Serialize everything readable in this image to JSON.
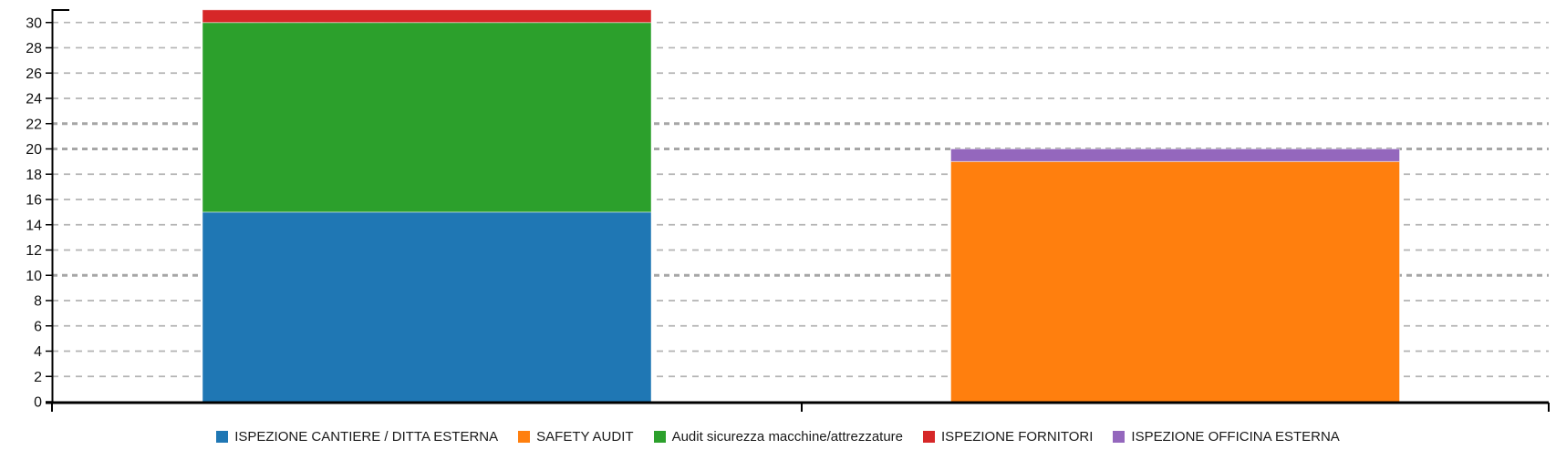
{
  "chart_data": {
    "type": "bar",
    "stacked": true,
    "orientation": "vertical",
    "title": "",
    "xlabel": "",
    "ylabel": "",
    "categories": [
      "",
      ""
    ],
    "series": [
      {
        "name": "ISPEZIONE CANTIERE / DITTA ESTERNA",
        "color": "#1F77B4",
        "values": [
          15,
          0
        ]
      },
      {
        "name": "SAFETY AUDIT",
        "color": "#FF7F0E",
        "values": [
          0,
          19
        ]
      },
      {
        "name": "Audit sicurezza macchine/attrezzature",
        "color": "#2CA02C",
        "values": [
          15,
          0
        ]
      },
      {
        "name": "ISPEZIONE FORNITORI",
        "color": "#D62728",
        "values": [
          1,
          0
        ]
      },
      {
        "name": "ISPEZIONE OFFICINA ESTERNA",
        "color": "#9467BD",
        "values": [
          0,
          1
        ]
      }
    ],
    "stack_totals": [
      31,
      20
    ],
    "ylim": [
      0,
      31.06
    ],
    "yticks": [
      0,
      2,
      4,
      6,
      8,
      10,
      12,
      14,
      16,
      18,
      20,
      22,
      24,
      26,
      28,
      30
    ],
    "emphasized_gridlines": [
      10,
      20,
      22
    ],
    "grid": "dashed-horizontal",
    "legend_position": "bottom",
    "axis_color": "#000000",
    "gridline_color": "#B3B3B3",
    "emphasized_gridline_color": "#A6A6A6",
    "tick_label_color": "#111111"
  }
}
